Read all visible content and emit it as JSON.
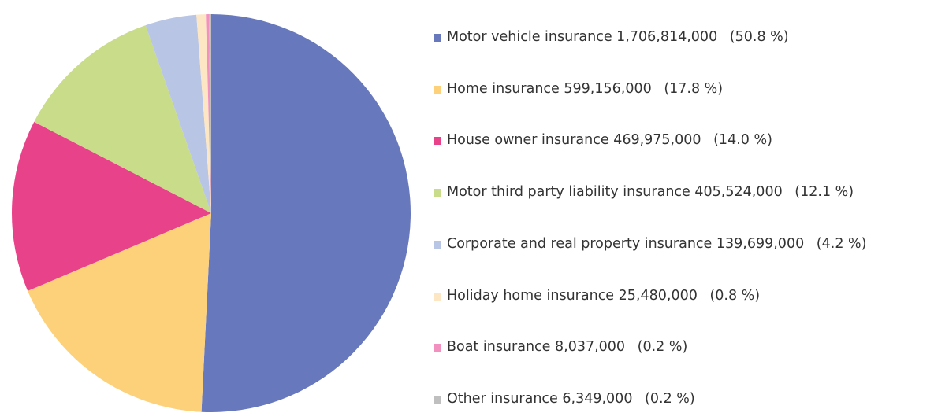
{
  "chart_data": {
    "type": "pie",
    "categories": [
      "Motor vehicle insurance",
      "Home insurance",
      "House owner insurance",
      "Motor third party liability insurance",
      "Corporate and real property insurance",
      "Holiday home insurance",
      "Boat insurance",
      "Other insurance"
    ],
    "values": [
      1706814000,
      599156000,
      469975000,
      405524000,
      139699000,
      25480000,
      8037000,
      6349000
    ],
    "value_labels": [
      "1,706,814,000",
      "599,156,000",
      "469,975,000",
      "405,524,000",
      "139,699,000",
      "25,480,000",
      "8,037,000",
      "6,349,000"
    ],
    "percent_labels": [
      "(50.8 %)",
      "(17.8 %)",
      "(14.0 %)",
      "(12.1 %)",
      "(4.2 %)",
      "(0.8 %)",
      "(0.2 %)",
      "(0.2 %)"
    ],
    "colors": [
      "#6878bc",
      "#fdd17a",
      "#e8438a",
      "#c8dc8a",
      "#b9c5e5",
      "#fde6c4",
      "#f291c0",
      "#bfbfbf"
    ],
    "legend": "right"
  }
}
